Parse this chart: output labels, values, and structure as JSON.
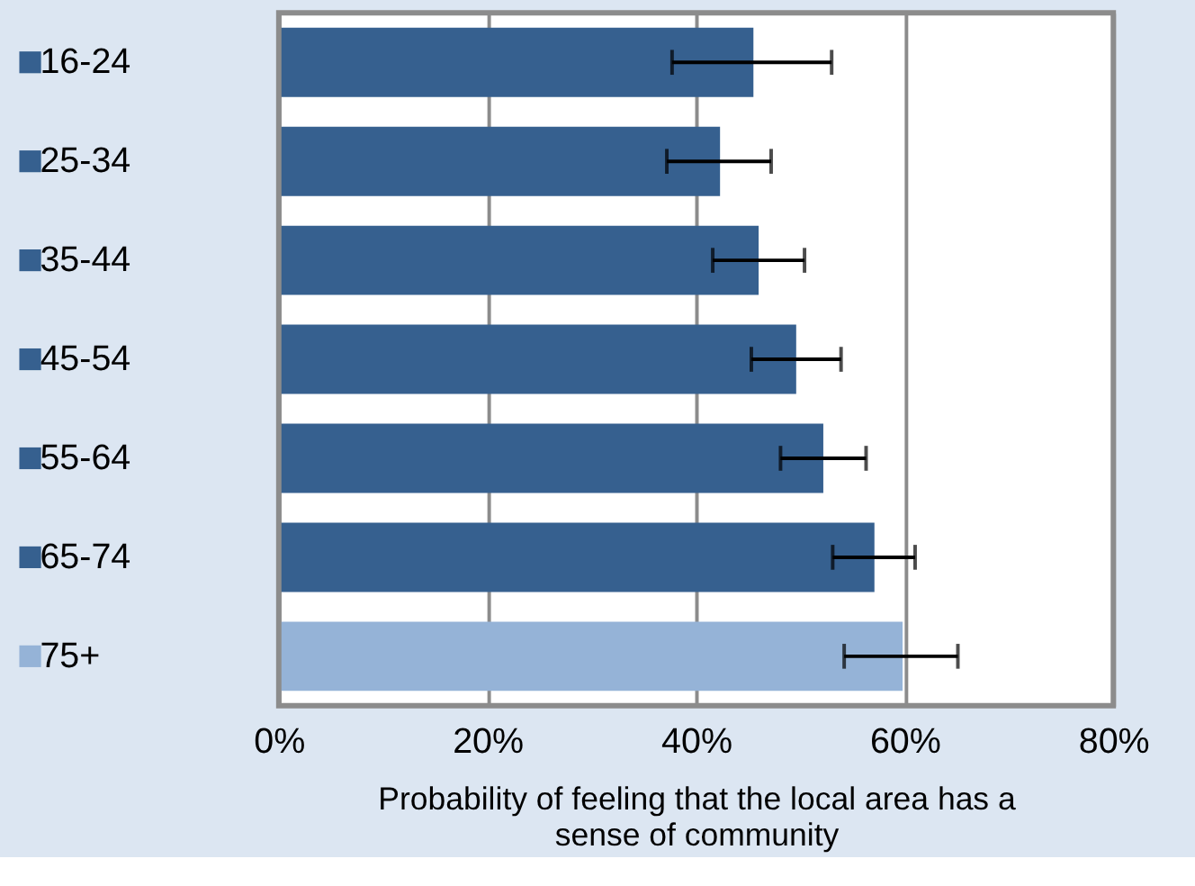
{
  "chart_data": {
    "type": "bar",
    "orientation": "horizontal",
    "categories": [
      "16-24",
      "25-34",
      "35-44",
      "45-54",
      "55-64",
      "65-74",
      "75+"
    ],
    "values": [
      45.5,
      42.3,
      46.0,
      49.6,
      52.2,
      57.1,
      59.8
    ],
    "colors": [
      "#36608f",
      "#36608f",
      "#36608f",
      "#36608f",
      "#36608f",
      "#36608f",
      "#95b3d7"
    ],
    "errors": [
      [
        37.7,
        53.0
      ],
      [
        37.2,
        47.2
      ],
      [
        41.6,
        50.4
      ],
      [
        45.3,
        53.9
      ],
      [
        48.1,
        56.3
      ],
      [
        53.1,
        61.0
      ],
      [
        54.2,
        65.1
      ]
    ],
    "xlabel": "Probability of feeling that the local area has a sense of community",
    "xlim": [
      0,
      80
    ],
    "xticks": [
      {
        "value": 0,
        "label": "0%"
      },
      {
        "value": 20,
        "label": "20%"
      },
      {
        "value": 40,
        "label": "40%"
      },
      {
        "value": 60,
        "label": "60%"
      },
      {
        "value": 80,
        "label": "80%"
      }
    ],
    "grid": "x"
  }
}
